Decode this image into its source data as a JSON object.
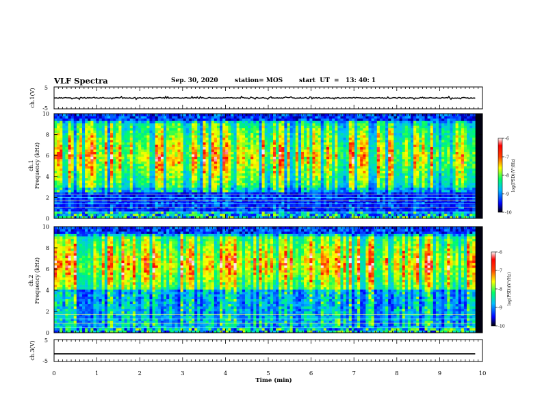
{
  "header": {
    "title": "VLF Spectra",
    "date": "Sep. 30, 2020",
    "station": "station= MOS",
    "start": "start  UT  =   13: 40: 1"
  },
  "chart_data": {
    "type": "heatmap",
    "xlabel": "Time  (min)",
    "x_ticks": [
      "0",
      "1",
      "2",
      "3",
      "4",
      "5",
      "6",
      "7",
      "8",
      "9",
      "10"
    ],
    "xlim": [
      0,
      10
    ],
    "data_end_min": 9.83,
    "panels": [
      {
        "id": "ch1-waveform",
        "type": "line",
        "ylabel": "ch.1(V)",
        "ylim": [
          -5,
          5
        ],
        "y_ticks": [
          "5",
          "-5"
        ],
        "signal_level": 0
      },
      {
        "id": "ch1-spectrogram",
        "type": "heatmap",
        "ylabel_top": "ch.1",
        "ylabel": "Frequency  (kHz)",
        "ylim": [
          0,
          10
        ],
        "y_ticks": [
          "0",
          "2",
          "4",
          "6",
          "8",
          "10"
        ],
        "dominant_band_khz": [
          3,
          9
        ],
        "colorbar": {
          "label": "log(PSD)(V²/Hz)",
          "range": [
            -10,
            -6
          ],
          "ticks": [
            "-6",
            "-7",
            "-8",
            "-9",
            "-10"
          ]
        }
      },
      {
        "id": "ch2-spectrogram",
        "type": "heatmap",
        "ylabel_top": "ch.2",
        "ylabel": "Frequency  (kHz)",
        "ylim": [
          0,
          10
        ],
        "y_ticks": [
          "0",
          "2",
          "4",
          "6",
          "8",
          "10"
        ],
        "dominant_band_khz": [
          4,
          9
        ],
        "colorbar": {
          "label": "log(PSD)(V²/Hz)",
          "range": [
            -10,
            -6
          ],
          "ticks": [
            "-6",
            "-7",
            "-8",
            "-9",
            "-10"
          ]
        }
      },
      {
        "id": "ch3-waveform",
        "type": "line",
        "ylabel": "ch.3(V)",
        "ylim": [
          -5,
          5
        ],
        "y_ticks": [
          "5",
          "-5"
        ],
        "signal_level": -1.5
      }
    ],
    "colormap": [
      "#00003c",
      "#0000ff",
      "#00bfff",
      "#00ff64",
      "#c8ff00",
      "#ffff00",
      "#ff8c00",
      "#ff0000",
      "#ffffff"
    ]
  }
}
